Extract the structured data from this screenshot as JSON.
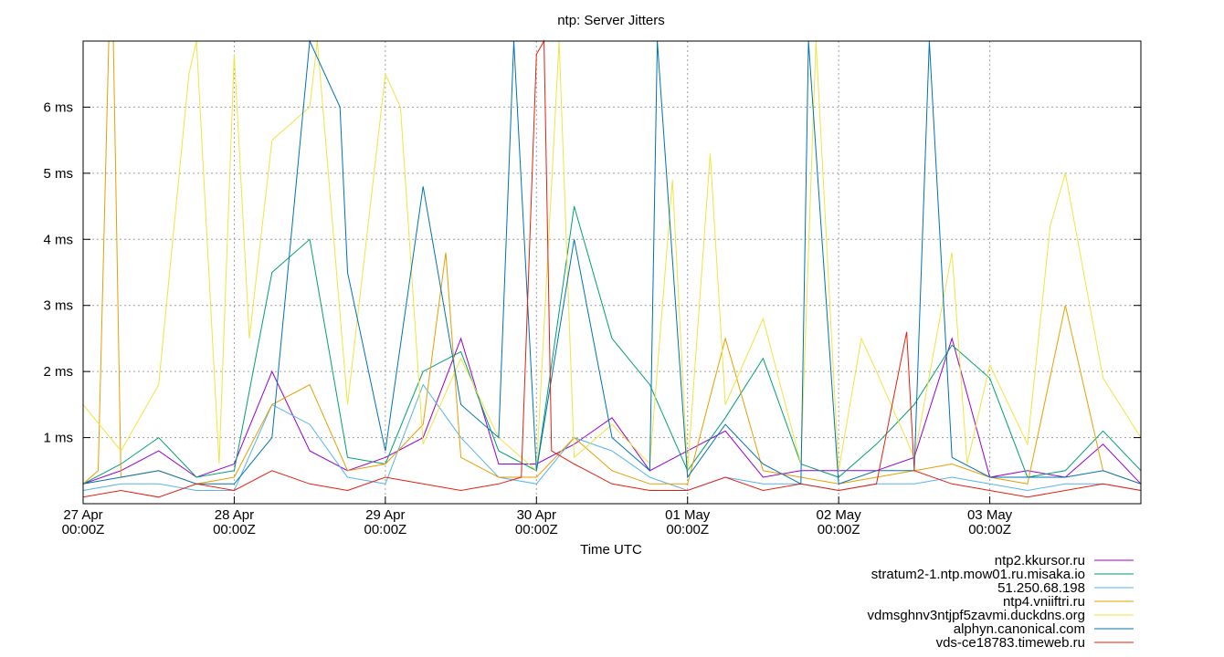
{
  "chart_data": {
    "type": "line",
    "title": "ntp: Server Jitters",
    "xlabel": "Time UTC",
    "ylabel": "",
    "ylim": [
      0,
      7
    ],
    "xlim_days": [
      0,
      7
    ],
    "grid": true,
    "legend_position": "bottom-right",
    "x_ticks": [
      {
        "day": 0,
        "date": "27 Apr",
        "time": "00:00Z"
      },
      {
        "day": 1,
        "date": "28 Apr",
        "time": "00:00Z"
      },
      {
        "day": 2,
        "date": "29 Apr",
        "time": "00:00Z"
      },
      {
        "day": 3,
        "date": "30 Apr",
        "time": "00:00Z"
      },
      {
        "day": 4,
        "date": "01 May",
        "time": "00:00Z"
      },
      {
        "day": 5,
        "date": "02 May",
        "time": "00:00Z"
      },
      {
        "day": 6,
        "date": "03 May",
        "time": "00:00Z"
      }
    ],
    "y_ticks": [
      {
        "v": 1,
        "label": "1 ms"
      },
      {
        "v": 2,
        "label": "2 ms"
      },
      {
        "v": 3,
        "label": "3 ms"
      },
      {
        "v": 4,
        "label": "4 ms"
      },
      {
        "v": 5,
        "label": "5 ms"
      },
      {
        "v": 6,
        "label": "6 ms"
      }
    ],
    "series": [
      {
        "name": "ntp2.kkursor.ru",
        "color": "#9400d3",
        "x": [
          0,
          0.25,
          0.5,
          0.75,
          1,
          1.25,
          1.5,
          1.75,
          2,
          2.25,
          2.5,
          2.75,
          3,
          3.25,
          3.5,
          3.75,
          4,
          4.25,
          4.5,
          4.75,
          5,
          5.25,
          5.5,
          5.75,
          6,
          6.25,
          6.5,
          6.75,
          7
        ],
        "y": [
          0.3,
          0.5,
          0.8,
          0.4,
          0.6,
          2.0,
          0.8,
          0.5,
          0.7,
          1.0,
          2.5,
          0.6,
          0.6,
          0.9,
          1.3,
          0.5,
          0.8,
          1.1,
          0.4,
          0.5,
          0.5,
          0.5,
          0.7,
          2.5,
          0.4,
          0.5,
          0.4,
          0.9,
          0.3
        ]
      },
      {
        "name": "stratum2-1.ntp.mow01.ru.misaka.io",
        "color": "#009e73",
        "x": [
          0,
          0.25,
          0.5,
          0.75,
          1,
          1.25,
          1.5,
          1.75,
          2,
          2.25,
          2.5,
          2.75,
          3,
          3.25,
          3.5,
          3.75,
          4,
          4.25,
          4.5,
          4.75,
          5,
          5.25,
          5.5,
          5.75,
          6,
          6.25,
          6.5,
          6.75,
          7
        ],
        "y": [
          0.3,
          0.6,
          1.0,
          0.4,
          0.5,
          3.5,
          4.0,
          0.7,
          0.6,
          2.0,
          2.3,
          0.8,
          0.5,
          4.5,
          2.5,
          1.8,
          0.5,
          1.3,
          2.2,
          0.6,
          0.4,
          0.9,
          1.5,
          2.4,
          1.9,
          0.4,
          0.5,
          1.1,
          0.5
        ]
      },
      {
        "name": "51.250.68.198",
        "color": "#56b4e9",
        "x": [
          0,
          0.25,
          0.5,
          0.75,
          1,
          1.25,
          1.5,
          1.75,
          2,
          2.25,
          2.5,
          2.75,
          3,
          3.25,
          3.5,
          3.75,
          4,
          4.25,
          4.5,
          4.75,
          5,
          5.25,
          5.5,
          5.75,
          6,
          6.25,
          6.5,
          6.75,
          7
        ],
        "y": [
          0.2,
          0.3,
          0.3,
          0.2,
          0.2,
          1.5,
          1.2,
          0.4,
          0.3,
          1.8,
          1.0,
          0.4,
          0.3,
          1.0,
          0.8,
          0.4,
          0.2,
          0.4,
          0.3,
          0.3,
          0.2,
          0.3,
          0.3,
          0.4,
          0.3,
          0.2,
          0.3,
          0.3,
          0.2
        ]
      },
      {
        "name": "ntp4.vniiftri.ru",
        "color": "#e69f00",
        "x": [
          0,
          0.1,
          0.17,
          0.2,
          0.25,
          0.5,
          0.75,
          1,
          1.25,
          1.5,
          1.75,
          2,
          2.25,
          2.4,
          2.5,
          2.75,
          3,
          3.25,
          3.5,
          3.75,
          4,
          4.25,
          4.5,
          4.75,
          5,
          5.25,
          5.5,
          5.75,
          6,
          6.25,
          6.5,
          6.75,
          7
        ],
        "y": [
          0.3,
          0.5,
          7.0,
          7.0,
          0.4,
          0.5,
          0.3,
          0.4,
          1.5,
          1.8,
          0.5,
          0.6,
          1.2,
          3.8,
          0.7,
          0.4,
          0.4,
          1.0,
          0.5,
          0.3,
          0.3,
          2.5,
          0.5,
          0.4,
          0.3,
          0.4,
          0.5,
          0.6,
          0.4,
          0.3,
          3.0,
          0.5,
          0.3
        ]
      },
      {
        "name": "vdmsghnv3ntjpf5zavmi.duckdns.org",
        "color": "#f0e442",
        "x": [
          0,
          0.25,
          0.5,
          0.7,
          0.75,
          0.9,
          1,
          1.1,
          1.25,
          1.5,
          1.55,
          1.75,
          2,
          2.1,
          2.25,
          2.5,
          2.75,
          3,
          3.15,
          3.25,
          3.5,
          3.75,
          3.9,
          4,
          4.15,
          4.25,
          4.5,
          4.75,
          4.85,
          5,
          5.15,
          5.25,
          5.5,
          5.75,
          5.85,
          6,
          6.25,
          6.4,
          6.5,
          6.75,
          7
        ],
        "y": [
          1.5,
          0.8,
          1.8,
          6.5,
          7.0,
          0.6,
          6.8,
          2.5,
          5.5,
          6.0,
          7.0,
          1.5,
          6.5,
          6.0,
          0.9,
          2.2,
          1.0,
          0.5,
          7.0,
          0.7,
          1.2,
          0.6,
          4.9,
          0.5,
          5.3,
          1.5,
          2.8,
          0.6,
          7.0,
          0.5,
          2.5,
          2.0,
          0.7,
          3.8,
          0.6,
          2.1,
          0.9,
          4.2,
          5.0,
          1.9,
          1.0
        ]
      },
      {
        "name": "alphyn.canonical.com",
        "color": "#0072b2",
        "x": [
          0,
          0.25,
          0.5,
          0.75,
          1,
          1.25,
          1.5,
          1.7,
          1.75,
          2,
          2.25,
          2.5,
          2.75,
          2.85,
          3,
          3.25,
          3.5,
          3.75,
          3.8,
          4,
          4.25,
          4.5,
          4.75,
          4.8,
          5,
          5.25,
          5.5,
          5.6,
          5.75,
          6,
          6.25,
          6.5,
          6.75,
          7
        ],
        "y": [
          0.3,
          0.4,
          0.5,
          0.3,
          0.3,
          1.0,
          7.0,
          6.0,
          3.5,
          0.8,
          4.8,
          1.5,
          1.0,
          7.0,
          0.5,
          4.0,
          1.0,
          0.5,
          7.0,
          0.4,
          1.2,
          0.6,
          0.3,
          7.0,
          0.3,
          0.5,
          0.5,
          7.0,
          0.7,
          0.4,
          0.4,
          0.4,
          0.5,
          0.3
        ]
      },
      {
        "name": "vds-ce18783.timeweb.ru",
        "color": "#e51e10",
        "x": [
          0,
          0.25,
          0.5,
          0.75,
          1,
          1.25,
          1.5,
          1.75,
          2,
          2.25,
          2.5,
          2.75,
          2.9,
          3,
          3.05,
          3.1,
          3.25,
          3.5,
          3.75,
          4,
          4.25,
          4.5,
          4.75,
          5,
          5.25,
          5.45,
          5.5,
          5.75,
          6,
          6.25,
          6.5,
          6.75,
          7
        ],
        "y": [
          0.1,
          0.2,
          0.1,
          0.3,
          0.2,
          0.5,
          0.3,
          0.2,
          0.4,
          0.3,
          0.2,
          0.3,
          0.4,
          6.8,
          7.0,
          0.8,
          0.6,
          0.3,
          0.2,
          0.2,
          0.4,
          0.2,
          0.3,
          0.2,
          0.3,
          2.6,
          0.5,
          0.3,
          0.2,
          0.1,
          0.2,
          0.3,
          0.2
        ]
      }
    ]
  }
}
